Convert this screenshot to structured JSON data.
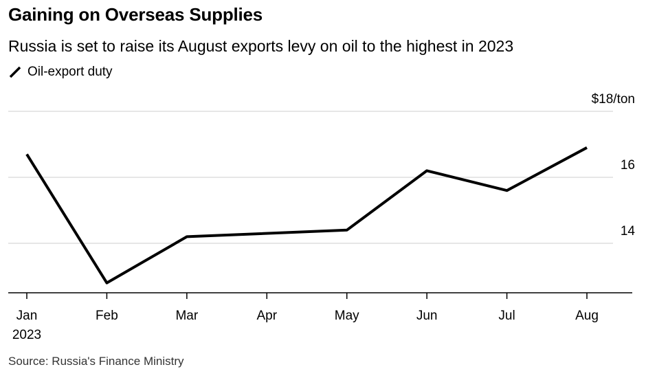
{
  "header": {
    "title": "Gaining on Overseas Supplies",
    "subtitle": "Russia is set to raise its August exports levy on oil to the highest in 2023"
  },
  "footer": {
    "source": "Source: Russia's Finance Ministry"
  },
  "colors": {
    "line": "#000000",
    "gridline": "#dddddd",
    "axis": "#000000",
    "text": "#000000",
    "source_text": "#333333"
  },
  "chart_data": {
    "type": "line",
    "title": "Gaining on Overseas Supplies",
    "subtitle": "Russia is set to raise its August exports levy on oil to the highest in 2023",
    "x": [
      "Jan",
      "Feb",
      "Mar",
      "Apr",
      "May",
      "Jun",
      "Jul",
      "Aug"
    ],
    "x_tick_labels": [
      "Jan",
      "Feb",
      "Mar",
      "Apr",
      "May",
      "Jun",
      "Jul",
      "Aug"
    ],
    "x_secondary_label": "2023",
    "series": [
      {
        "name": "Oil-export duty",
        "values": [
          16.7,
          12.8,
          14.2,
          null,
          14.4,
          16.2,
          15.6,
          16.9
        ]
      }
    ],
    "ylim": [
      12.5,
      18
    ],
    "y_ticks": [
      14,
      16,
      18
    ],
    "y_tick_labels": [
      "14",
      "16",
      "$18/ton"
    ],
    "y_axis_side": "right",
    "grid": true,
    "legend_position": "top-left",
    "xlabel": "",
    "ylabel": "",
    "source": "Source: Russia's Finance Ministry"
  }
}
